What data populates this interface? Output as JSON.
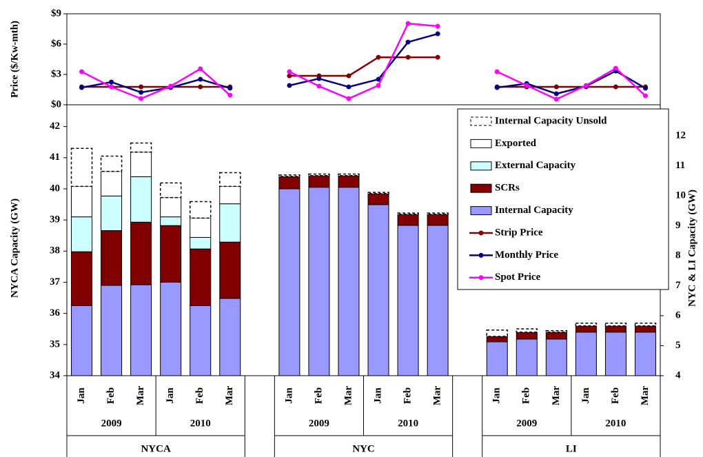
{
  "chart_data": [
    {
      "type": "line",
      "y_label": "Price ($/Kw-mth)",
      "ylim": [
        0,
        9
      ],
      "yticks": [
        {
          "value": 0,
          "label": "$0"
        },
        {
          "value": 3,
          "label": "$3"
        },
        {
          "value": 6,
          "label": "$6"
        },
        {
          "value": 9,
          "label": "$9"
        }
      ],
      "series": [
        {
          "name": "Strip Price",
          "color": "#800000",
          "values": [
            1.77,
            1.77,
            1.77,
            1.77,
            1.77,
            1.77,
            2.86,
            2.86,
            2.86,
            4.7,
            4.7,
            4.7,
            1.77,
            1.77,
            1.77,
            1.77,
            1.77,
            1.77
          ]
        },
        {
          "name": "Monthly Price",
          "color": "#000080",
          "values": [
            1.7,
            2.25,
            1.23,
            1.7,
            2.52,
            1.64,
            1.91,
            2.59,
            1.77,
            2.52,
            6.2,
            7.02,
            1.7,
            2.1,
            1.09,
            1.84,
            3.34,
            1.64
          ]
        },
        {
          "name": "Spot Price",
          "color": "#ff00ff",
          "values": [
            3.27,
            1.77,
            0.61,
            1.84,
            3.55,
            0.95,
            3.27,
            1.84,
            0.61,
            1.91,
            8.04,
            7.77,
            3.27,
            1.91,
            0.55,
            1.91,
            3.61,
            0.89
          ]
        }
      ]
    },
    {
      "type": "bar",
      "stacked": true,
      "y_label": "NYCA Capacity (GW)",
      "y2_label": "NYC & LI Capacity (GW)",
      "ylim": [
        34,
        42.7
      ],
      "yticks": [
        34,
        35,
        36,
        37,
        38,
        39,
        40,
        41,
        42
      ],
      "y2lim": [
        4,
        13.03
      ],
      "y2ticks": [
        4,
        5,
        6,
        7,
        8,
        9,
        10,
        11,
        12
      ],
      "groups": [
        {
          "name": "NYCA",
          "axis": "y",
          "years": [
            {
              "name": "2009",
              "months": [
                "Jan",
                "Feb",
                "Mar"
              ]
            },
            {
              "name": "2010",
              "months": [
                "Jan",
                "Feb",
                "Mar"
              ]
            }
          ]
        },
        {
          "name": "NYC",
          "axis": "y2",
          "years": [
            {
              "name": "2009",
              "months": [
                "Jan",
                "Feb",
                "Mar"
              ]
            },
            {
              "name": "2010",
              "months": [
                "Jan",
                "Feb",
                "Mar"
              ]
            }
          ]
        },
        {
          "name": "LI",
          "axis": "y2",
          "years": [
            {
              "name": "2009",
              "months": [
                "Jan",
                "Feb",
                "Mar"
              ]
            },
            {
              "name": "2010",
              "months": [
                "Jan",
                "Feb",
                "Mar"
              ]
            }
          ]
        }
      ],
      "series": [
        {
          "name": "Internal Capacity",
          "color": "#9999ff",
          "values": [
            36.25,
            36.9,
            36.92,
            37.0,
            36.25,
            36.48,
            10.23,
            10.28,
            10.28,
            9.7,
            9.01,
            9.01,
            5.13,
            5.22,
            5.22,
            5.45,
            5.45,
            5.45
          ]
        },
        {
          "name": "SCRs",
          "color": "#800000",
          "values": [
            1.73,
            1.76,
            2.01,
            1.82,
            1.82,
            1.81,
            0.41,
            0.39,
            0.39,
            0.37,
            0.37,
            0.37,
            0.18,
            0.23,
            0.23,
            0.21,
            0.21,
            0.21
          ]
        },
        {
          "name": "External Capacity",
          "color": "#ccffff",
          "values": [
            1.12,
            1.11,
            1.46,
            0.28,
            0.37,
            1.23,
            null,
            null,
            null,
            null,
            null,
            null,
            null,
            null,
            null,
            null,
            null,
            null
          ]
        },
        {
          "name": "Exported",
          "color": "#ffffff",
          "values": [
            0.98,
            0.79,
            0.79,
            0.62,
            0.62,
            0.56,
            null,
            null,
            null,
            null,
            null,
            null,
            null,
            null,
            null,
            null,
            null,
            null
          ]
        },
        {
          "name": "Internal Capacity Unsold",
          "color": "#ffffff",
          "dashed": true,
          "values": [
            1.22,
            0.49,
            0.29,
            0.47,
            0.53,
            0.44,
            0.05,
            0.05,
            0.05,
            0.04,
            0.04,
            0.04,
            0.21,
            0.11,
            0.05,
            0.09,
            0.09,
            0.09
          ]
        }
      ]
    }
  ]
}
